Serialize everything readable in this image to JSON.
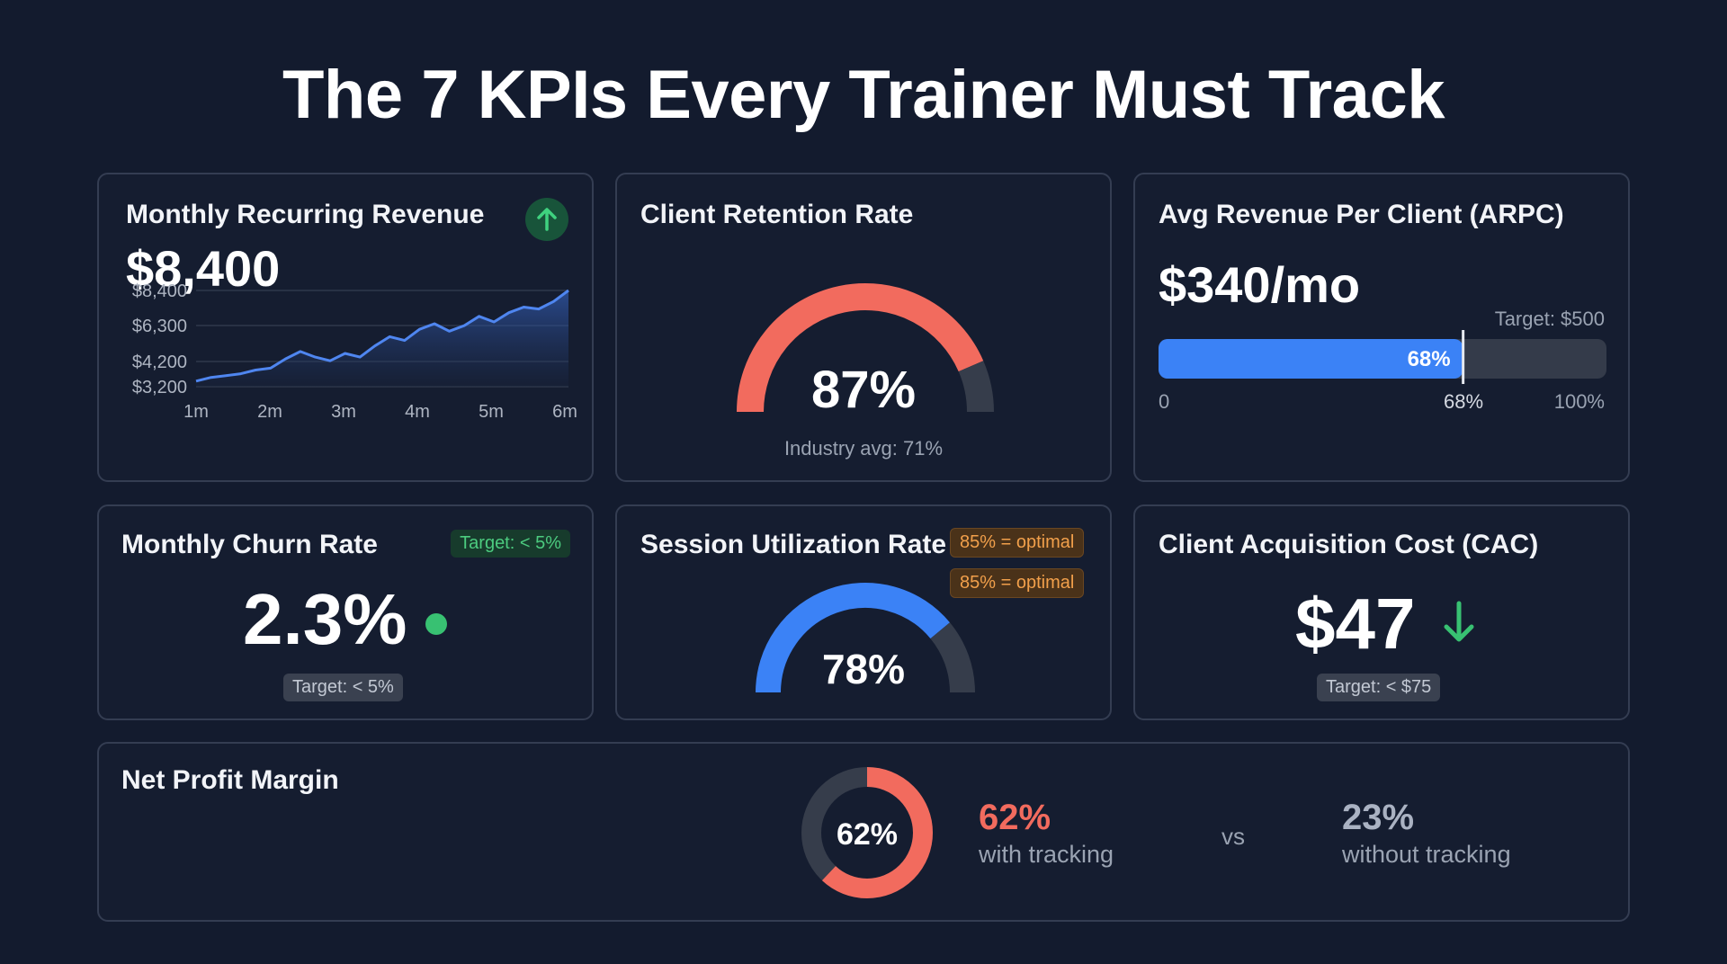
{
  "page_title": "The 7 KPIs Every Trainer Must Track",
  "colors": {
    "background": "#131b2e",
    "accent_blue": "#3b82f6",
    "accent_red": "#f26b5e",
    "accent_green": "#38c172",
    "track_gray": "#363d4b"
  },
  "mrr": {
    "title": "Monthly Recurring Revenue",
    "value": "$8,400",
    "trend_icon": "arrow-up-icon"
  },
  "retention": {
    "title": "Client Retention Rate",
    "value": "87%",
    "note": "Industry avg: 71%"
  },
  "arpc": {
    "title": "Avg Revenue Per Client (ARPC)",
    "value": "$340/mo",
    "target": "Target: $500",
    "bar_label": "68%",
    "axis_start": "0",
    "axis_mark": "68%",
    "axis_end": "100%"
  },
  "churn": {
    "title": "Monthly Churn Rate",
    "value": "2.3%",
    "badge": "Target: < 5%",
    "target": "Target: < 5%",
    "status_icon": "status-dot-icon"
  },
  "utilization": {
    "title": "Session Utilization Rate",
    "value": "78%",
    "badge_1": "85% = optimal",
    "badge_2": "85% = optimal"
  },
  "cac": {
    "title": "Client Acquisition Cost (CAC)",
    "value": "$47",
    "target": "Target: < $75",
    "trend_icon": "arrow-down-icon"
  },
  "npm": {
    "title": "Net Profit Margin",
    "donut_label": "62%",
    "with_value": "62%",
    "with_label": "with tracking",
    "vs": "vs",
    "without_value": "23%",
    "without_label": "without tracking"
  },
  "chart_data": [
    {
      "type": "area",
      "title": "Monthly Recurring Revenue",
      "x_ticks": [
        "1m",
        "2m",
        "3m",
        "4m",
        "5m",
        "6m"
      ],
      "y_ticks": [
        "$8,400",
        "$6,300",
        "$4,200",
        "$3,200"
      ],
      "ylim": [
        3200,
        8400
      ],
      "grid": true,
      "x": [
        1.0,
        1.2,
        1.4,
        1.6,
        1.8,
        2.0,
        2.2,
        2.4,
        2.6,
        2.8,
        3.0,
        3.2,
        3.4,
        3.6,
        3.8,
        4.0,
        4.2,
        4.4,
        4.6,
        4.8,
        5.0,
        5.2,
        5.4,
        5.6,
        5.8,
        6.0
      ],
      "y": [
        3500,
        3700,
        3800,
        3900,
        4100,
        4200,
        4700,
        5100,
        4800,
        4600,
        5000,
        4800,
        5400,
        5900,
        5700,
        6300,
        6600,
        6200,
        6500,
        7000,
        6700,
        7200,
        7500,
        7400,
        7800,
        8400
      ]
    },
    {
      "type": "gauge",
      "title": "Client Retention Rate",
      "value": 87,
      "max": 100
    },
    {
      "type": "bar",
      "title": "Avg Revenue Per Client (ARPC)",
      "value": 68,
      "max": 100,
      "marker": 68
    },
    {
      "type": "gauge",
      "title": "Session Utilization Rate",
      "value": 78,
      "max": 100
    },
    {
      "type": "pie",
      "title": "Net Profit Margin",
      "value": 62,
      "max": 100
    }
  ]
}
